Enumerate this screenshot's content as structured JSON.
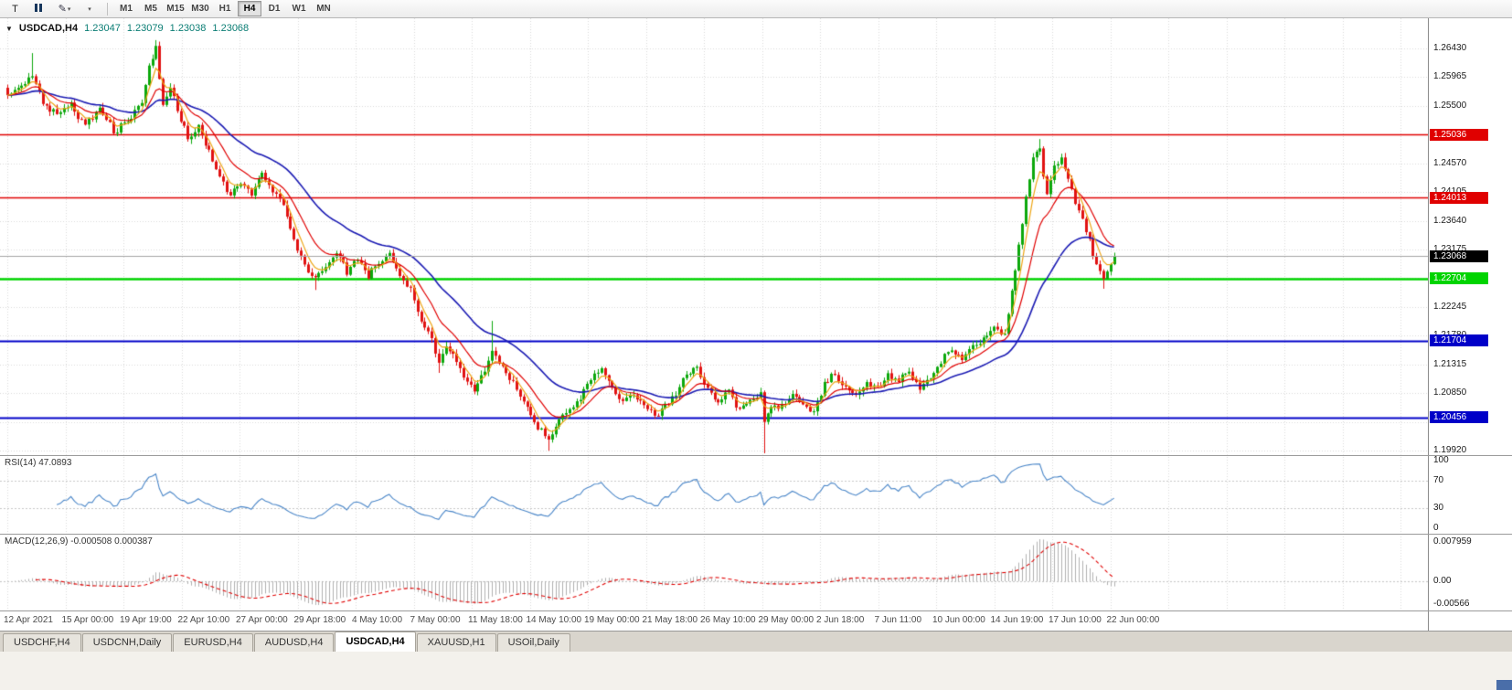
{
  "toolbar": {
    "pointer_button_label": "T",
    "timeframe_buttons": [
      "M1",
      "M5",
      "M15",
      "M30",
      "H1",
      "H4",
      "D1",
      "W1",
      "MN"
    ],
    "active_timeframe": "H4"
  },
  "chart": {
    "symbol_tf": "USDCAD,H4",
    "open": "1.23047",
    "high": "1.23079",
    "low": "1.23038",
    "close": "1.23068"
  },
  "chart_data": {
    "type": "candlestick",
    "symbol": "USDCAD",
    "timeframe": "H4",
    "price_range": [
      1.1985,
      1.26913
    ],
    "tick_step": 0.00465,
    "tick_base": 1.1992,
    "y_ticks": [
      "1.26430",
      "1.25965",
      "1.25500",
      "1.24570",
      "1.24105",
      "1.23640",
      "1.23175",
      "1.22245",
      "1.21780",
      "1.21315",
      "1.20850",
      "1.19920"
    ],
    "x_labels": [
      "12 Apr 2021",
      "15 Apr 00:00",
      "19 Apr 19:00",
      "22 Apr 10:00",
      "27 Apr 00:00",
      "29 Apr 18:00",
      "4 May 10:00",
      "7 May 00:00",
      "11 May 18:00",
      "14 May 10:00",
      "19 May 00:00",
      "21 May 18:00",
      "26 May 10:00",
      "29 May 00:00",
      "2 Jun 18:00",
      "7 Jun 11:00",
      "10 Jun 00:00",
      "14 Jun 19:00",
      "17 Jun 10:00",
      "22 Jun 00:00"
    ],
    "hlines": [
      {
        "price": 1.25036,
        "label": "1.25036",
        "color": "#e00000",
        "width": 1.5
      },
      {
        "price": 1.24013,
        "label": "1.24013",
        "color": "#e00000",
        "width": 1.5
      },
      {
        "price": 1.22704,
        "label": "1.22704",
        "color": "#00d400",
        "width": 2.5
      },
      {
        "price": 1.21704,
        "label": "1.21704",
        "color": "#0000c8",
        "width": 2
      },
      {
        "price": 1.20456,
        "label": "1.20456",
        "color": "#0000c8",
        "width": 2
      }
    ],
    "current_price": {
      "value": 1.23068,
      "label": "1.23068",
      "badge_color": "#000000",
      "line_color": "#a6a6a6"
    },
    "up_color": "#0ca80c",
    "down_color": "#e11212",
    "grid_color": "#d9d9d9",
    "bars": 314,
    "close_anchors": [
      [
        0,
        1.2565
      ],
      [
        4,
        1.2582
      ],
      [
        7,
        1.26
      ],
      [
        10,
        1.2555
      ],
      [
        14,
        1.2535
      ],
      [
        18,
        1.255
      ],
      [
        22,
        1.2518
      ],
      [
        26,
        1.2545
      ],
      [
        30,
        1.2508
      ],
      [
        34,
        1.2528
      ],
      [
        38,
        1.2555
      ],
      [
        40,
        1.261
      ],
      [
        42,
        1.2648
      ],
      [
        43,
        1.2588
      ],
      [
        44,
        1.2555
      ],
      [
        46,
        1.2575
      ],
      [
        48,
        1.2545
      ],
      [
        51,
        1.2498
      ],
      [
        54,
        1.2515
      ],
      [
        57,
        1.2478
      ],
      [
        60,
        1.2432
      ],
      [
        63,
        1.2405
      ],
      [
        66,
        1.2425
      ],
      [
        69,
        1.2406
      ],
      [
        72,
        1.244
      ],
      [
        75,
        1.2412
      ],
      [
        78,
        1.2392
      ],
      [
        81,
        1.233
      ],
      [
        84,
        1.229
      ],
      [
        87,
        1.2268
      ],
      [
        90,
        1.2292
      ],
      [
        93,
        1.2312
      ],
      [
        96,
        1.2282
      ],
      [
        99,
        1.2302
      ],
      [
        102,
        1.2276
      ],
      [
        105,
        1.2295
      ],
      [
        108,
        1.2312
      ],
      [
        111,
        1.2272
      ],
      [
        114,
        1.2255
      ],
      [
        117,
        1.2202
      ],
      [
        120,
        1.2172
      ],
      [
        122,
        1.213
      ],
      [
        124,
        1.2162
      ],
      [
        126,
        1.2145
      ],
      [
        129,
        1.2112
      ],
      [
        132,
        1.2092
      ],
      [
        135,
        1.212
      ],
      [
        137,
        1.2152
      ],
      [
        140,
        1.2128
      ],
      [
        144,
        1.2092
      ],
      [
        147,
        1.2062
      ],
      [
        150,
        1.2032
      ],
      [
        153,
        1.2012
      ],
      [
        156,
        1.2042
      ],
      [
        159,
        1.2062
      ],
      [
        162,
        1.2075
      ],
      [
        165,
        1.2108
      ],
      [
        168,
        1.2128
      ],
      [
        171,
        1.2092
      ],
      [
        174,
        1.2072
      ],
      [
        177,
        1.2085
      ],
      [
        180,
        1.2062
      ],
      [
        183,
        1.2046
      ],
      [
        186,
        1.2065
      ],
      [
        189,
        1.2082
      ],
      [
        192,
        1.2118
      ],
      [
        195,
        1.2125
      ],
      [
        198,
        1.2092
      ],
      [
        201,
        1.2072
      ],
      [
        204,
        1.2086
      ],
      [
        207,
        1.2056
      ],
      [
        210,
        1.2072
      ],
      [
        213,
        1.2082
      ],
      [
        214,
        1.2042
      ],
      [
        216,
        1.2058
      ],
      [
        219,
        1.2066
      ],
      [
        222,
        1.2082
      ],
      [
        225,
        1.2062
      ],
      [
        228,
        1.2056
      ],
      [
        231,
        1.2098
      ],
      [
        234,
        1.2118
      ],
      [
        237,
        1.2092
      ],
      [
        240,
        1.2082
      ],
      [
        243,
        1.2102
      ],
      [
        246,
        1.2092
      ],
      [
        249,
        1.2112
      ],
      [
        252,
        1.2106
      ],
      [
        255,
        1.2122
      ],
      [
        258,
        1.2096
      ],
      [
        261,
        1.2112
      ],
      [
        264,
        1.2132
      ],
      [
        266,
        1.2155
      ],
      [
        270,
        1.2142
      ],
      [
        273,
        1.2162
      ],
      [
        276,
        1.2175
      ],
      [
        279,
        1.2192
      ],
      [
        282,
        1.218
      ],
      [
        284,
        1.2252
      ],
      [
        286,
        1.2322
      ],
      [
        288,
        1.2402
      ],
      [
        290,
        1.2465
      ],
      [
        292,
        1.248
      ],
      [
        293,
        1.2432
      ],
      [
        294,
        1.2402
      ],
      [
        296,
        1.2452
      ],
      [
        298,
        1.2465
      ],
      [
        300,
        1.2432
      ],
      [
        302,
        1.2392
      ],
      [
        304,
        1.2365
      ],
      [
        306,
        1.2332
      ],
      [
        308,
        1.2292
      ],
      [
        310,
        1.2268
      ],
      [
        312,
        1.2298
      ],
      [
        313,
        1.23068
      ]
    ],
    "wicks": [
      {
        "bar": 7,
        "high": 1.2635
      },
      {
        "bar": 42,
        "high": 1.2656
      },
      {
        "bar": 87,
        "low": 1.2252
      },
      {
        "bar": 122,
        "low": 1.2118
      },
      {
        "bar": 137,
        "high": 1.2202
      },
      {
        "bar": 153,
        "low": 1.1992
      },
      {
        "bar": 214,
        "low": 1.1988
      },
      {
        "bar": 292,
        "high": 1.2496
      },
      {
        "bar": 310,
        "low": 1.2254
      }
    ],
    "ma_lines": [
      {
        "name": "ma-slow-blue",
        "period": 34,
        "color": "#1b1bb3",
        "width": 1.6
      },
      {
        "name": "ma-medium-red",
        "period": 13,
        "color": "#e00000",
        "width": 1.2
      },
      {
        "name": "ma-fast-yellow",
        "period": 5,
        "color": "#eda514",
        "width": 1.2
      }
    ],
    "rsi": {
      "label": "RSI(14)",
      "value": "47.0893",
      "period": 14,
      "color": "#4a86c8",
      "levels": [
        70,
        30
      ],
      "ticks": [
        {
          "v": 100,
          "label": "100"
        },
        {
          "v": 70,
          "label": "70"
        },
        {
          "v": 30,
          "label": "30"
        },
        {
          "v": 0,
          "label": "0"
        }
      ]
    },
    "macd": {
      "label": "MACD(12,26,9)",
      "values": "-0.000508 0.000387",
      "fast": 12,
      "slow": 26,
      "signal_period": 9,
      "hist_color": "#b0b0b0",
      "signal_color": "#e00000",
      "tick_top": "0.007959",
      "tick_zero": "0.00",
      "tick_bottom": "-0.00566"
    }
  },
  "tabs": {
    "items": [
      "USDCHF,H4",
      "USDCNH,Daily",
      "EURUSD,H4",
      "AUDUSD,H4",
      "USDCAD,H4",
      "XAUUSD,H1",
      "USOil,Daily"
    ],
    "active_index": 4
  }
}
